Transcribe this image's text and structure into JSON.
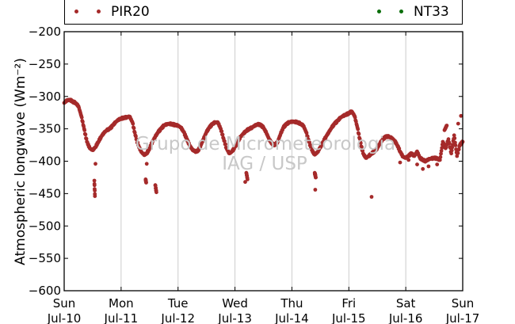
{
  "legend": {
    "series": [
      {
        "name": "PIR20",
        "color": "#a52a2a"
      },
      {
        "name": "NT33",
        "color": "#0a6e0a"
      }
    ]
  },
  "watermark": {
    "line1": "Grupo de Micrometeorologia",
    "line2": "IAG / USP"
  },
  "chart_data": {
    "type": "scatter",
    "title": "",
    "ylabel": "Atmospheric longwave (Wm⁻²)",
    "ylim": [
      -600,
      -200
    ],
    "yticks": [
      -200,
      -250,
      -300,
      -350,
      -400,
      -450,
      -500,
      -550,
      -600
    ],
    "xlim": [
      0,
      7
    ],
    "xticks": [
      {
        "day": "Sun",
        "date": "Jul-10"
      },
      {
        "day": "Mon",
        "date": "Jul-11"
      },
      {
        "day": "Tue",
        "date": "Jul-12"
      },
      {
        "day": "Wed",
        "date": "Jul-13"
      },
      {
        "day": "Thu",
        "date": "Jul-14"
      },
      {
        "day": "Fri",
        "date": "Jul-15"
      },
      {
        "day": "Sat",
        "date": "Jul-16"
      },
      {
        "day": "Sun",
        "date": "Jul-17"
      }
    ],
    "grid": "vertical",
    "legend_position": "top",
    "series": [
      {
        "name": "PIR20",
        "color": "#a52a2a",
        "points": [
          [
            0.0,
            -310
          ],
          [
            0.05,
            -306
          ],
          [
            0.1,
            -305
          ],
          [
            0.15,
            -308
          ],
          [
            0.2,
            -310
          ],
          [
            0.25,
            -315
          ],
          [
            0.3,
            -330
          ],
          [
            0.35,
            -350
          ],
          [
            0.4,
            -370
          ],
          [
            0.45,
            -380
          ],
          [
            0.5,
            -383
          ],
          [
            0.55,
            -378
          ],
          [
            0.6,
            -370
          ],
          [
            0.65,
            -362
          ],
          [
            0.7,
            -356
          ],
          [
            0.75,
            -352
          ],
          [
            0.8,
            -350
          ],
          [
            0.85,
            -345
          ],
          [
            0.9,
            -340
          ],
          [
            0.95,
            -336
          ],
          [
            1.0,
            -334
          ],
          [
            1.05,
            -333
          ],
          [
            1.1,
            -332
          ],
          [
            1.15,
            -331
          ],
          [
            1.2,
            -340
          ],
          [
            1.25,
            -360
          ],
          [
            1.3,
            -375
          ],
          [
            1.35,
            -385
          ],
          [
            1.4,
            -390
          ],
          [
            1.45,
            -388
          ],
          [
            1.5,
            -380
          ],
          [
            1.55,
            -370
          ],
          [
            1.6,
            -362
          ],
          [
            1.65,
            -355
          ],
          [
            1.7,
            -350
          ],
          [
            1.75,
            -345
          ],
          [
            1.8,
            -343
          ],
          [
            1.85,
            -342
          ],
          [
            1.9,
            -343
          ],
          [
            1.95,
            -344
          ],
          [
            2.0,
            -345
          ],
          [
            2.05,
            -348
          ],
          [
            2.1,
            -355
          ],
          [
            2.15,
            -365
          ],
          [
            2.2,
            -375
          ],
          [
            2.25,
            -382
          ],
          [
            2.3,
            -385
          ],
          [
            2.35,
            -384
          ],
          [
            2.4,
            -375
          ],
          [
            2.45,
            -365
          ],
          [
            2.5,
            -355
          ],
          [
            2.55,
            -348
          ],
          [
            2.6,
            -343
          ],
          [
            2.65,
            -340
          ],
          [
            2.7,
            -340
          ],
          [
            2.75,
            -350
          ],
          [
            2.8,
            -365
          ],
          [
            2.85,
            -380
          ],
          [
            2.9,
            -388
          ],
          [
            2.95,
            -385
          ],
          [
            3.0,
            -378
          ],
          [
            3.05,
            -370
          ],
          [
            3.1,
            -362
          ],
          [
            3.15,
            -357
          ],
          [
            3.2,
            -353
          ],
          [
            3.25,
            -350
          ],
          [
            3.3,
            -348
          ],
          [
            3.35,
            -345
          ],
          [
            3.4,
            -343
          ],
          [
            3.45,
            -344
          ],
          [
            3.5,
            -348
          ],
          [
            3.55,
            -356
          ],
          [
            3.6,
            -366
          ],
          [
            3.65,
            -373
          ],
          [
            3.7,
            -375
          ],
          [
            3.75,
            -370
          ],
          [
            3.8,
            -358
          ],
          [
            3.85,
            -348
          ],
          [
            3.9,
            -343
          ],
          [
            3.95,
            -340
          ],
          [
            4.0,
            -339
          ],
          [
            4.05,
            -339
          ],
          [
            4.1,
            -340
          ],
          [
            4.15,
            -342
          ],
          [
            4.2,
            -345
          ],
          [
            4.25,
            -355
          ],
          [
            4.3,
            -370
          ],
          [
            4.35,
            -383
          ],
          [
            4.4,
            -390
          ],
          [
            4.45,
            -386
          ],
          [
            4.5,
            -378
          ],
          [
            4.55,
            -370
          ],
          [
            4.6,
            -362
          ],
          [
            4.65,
            -355
          ],
          [
            4.7,
            -348
          ],
          [
            4.75,
            -342
          ],
          [
            4.8,
            -338
          ],
          [
            4.85,
            -333
          ],
          [
            4.9,
            -330
          ],
          [
            4.95,
            -328
          ],
          [
            5.0,
            -326
          ],
          [
            5.05,
            -323
          ],
          [
            5.1,
            -330
          ],
          [
            5.15,
            -348
          ],
          [
            5.2,
            -370
          ],
          [
            5.25,
            -388
          ],
          [
            5.3,
            -395
          ],
          [
            5.35,
            -392
          ],
          [
            5.4,
            -388
          ],
          [
            5.45,
            -385
          ],
          [
            5.5,
            -380
          ],
          [
            5.55,
            -372
          ],
          [
            5.6,
            -366
          ],
          [
            5.65,
            -362
          ],
          [
            5.7,
            -362
          ],
          [
            5.75,
            -364
          ],
          [
            5.8,
            -368
          ],
          [
            5.85,
            -375
          ],
          [
            5.9,
            -385
          ],
          [
            5.95,
            -393
          ],
          [
            6.0,
            -395
          ],
          [
            6.05,
            -392
          ],
          [
            6.1,
            -388
          ],
          [
            6.15,
            -392
          ],
          [
            6.2,
            -385
          ],
          [
            6.25,
            -395
          ],
          [
            6.3,
            -398
          ],
          [
            6.35,
            -400
          ],
          [
            6.4,
            -397
          ],
          [
            6.45,
            -396
          ],
          [
            6.5,
            -395
          ],
          [
            6.55,
            -396
          ],
          [
            6.6,
            -398
          ],
          [
            6.65,
            -370
          ],
          [
            6.7,
            -380
          ],
          [
            6.75,
            -366
          ],
          [
            6.8,
            -388
          ],
          [
            6.85,
            -360
          ],
          [
            6.9,
            -392
          ],
          [
            6.95,
            -375
          ],
          [
            7.0,
            -370
          ],
          [
            0.55,
            -404
          ],
          [
            0.53,
            -430
          ],
          [
            0.54,
            -454
          ],
          [
            1.45,
            -404
          ],
          [
            1.43,
            -428
          ],
          [
            1.44,
            -433
          ],
          [
            1.6,
            -437
          ],
          [
            1.62,
            -448
          ],
          [
            3.2,
            -418
          ],
          [
            3.22,
            -428
          ],
          [
            3.18,
            -432
          ],
          [
            4.4,
            -418
          ],
          [
            4.42,
            -425
          ],
          [
            4.41,
            -444
          ],
          [
            5.4,
            -455
          ],
          [
            6.3,
            -412
          ],
          [
            6.2,
            -405
          ],
          [
            6.68,
            -352
          ],
          [
            6.72,
            -345
          ],
          [
            6.97,
            -330
          ],
          [
            6.92,
            -342
          ],
          [
            5.9,
            -402
          ],
          [
            6.05,
            -398
          ],
          [
            6.4,
            -408
          ],
          [
            6.55,
            -405
          ]
        ]
      },
      {
        "name": "NT33",
        "color": "#0a6e0a",
        "points": []
      }
    ]
  }
}
